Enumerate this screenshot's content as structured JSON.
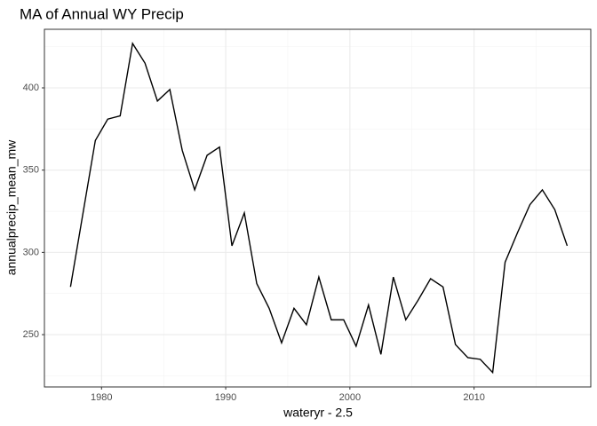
{
  "chart_data": {
    "type": "line",
    "title": "MA of Annual WY Precip",
    "x_label": "wateryr - 2.5",
    "y_label": "annualprecip_mean_mw",
    "x": [
      1977.5,
      1979.5,
      1980.5,
      1981.5,
      1982.5,
      1983.5,
      1984.5,
      1985.5,
      1986.5,
      1987.5,
      1988.5,
      1989.5,
      1990.5,
      1991.5,
      1992.5,
      1993.5,
      1994.5,
      1995.5,
      1996.5,
      1997.5,
      1998.5,
      1999.5,
      2000.5,
      2001.5,
      2002.5,
      2003.5,
      2004.5,
      2005.5,
      2006.5,
      2007.5,
      2008.5,
      2009.5,
      2010.5,
      2011.5,
      2012.5,
      2013.5,
      2014.5,
      2015.5,
      2016.5,
      2017.5
    ],
    "series": [
      {
        "color": "#000000",
        "values": [
          279,
          368,
          381,
          383,
          427,
          415,
          392,
          399,
          362,
          338,
          359,
          364,
          304,
          324,
          281,
          266,
          245,
          266,
          256,
          285,
          259,
          259,
          243,
          268,
          238,
          285,
          259,
          271,
          284,
          279,
          244,
          236,
          235,
          227,
          294,
          312,
          329,
          338,
          326,
          304
        ]
      }
    ],
    "xlim": [
      1975.4,
      2019.4
    ],
    "xticks": [
      1980,
      1990,
      2000,
      2010
    ],
    "ylim": [
      218.2,
      435.6
    ],
    "yticks": [
      250,
      300,
      350,
      400
    ],
    "grid": true
  }
}
